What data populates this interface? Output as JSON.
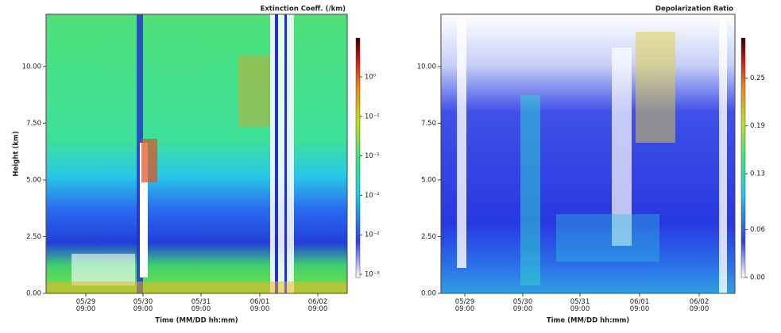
{
  "chart_data": [
    {
      "type": "heatmap",
      "title": "Extinction Coeff. (/km)",
      "xlabel": "Time (MM/DD hh:mm)",
      "ylabel": "Height (km)",
      "xtick_labels": [
        "05/29 09:00",
        "05/30 09:00",
        "05/31 09:00",
        "06/01 09:00",
        "06/02 09:00"
      ],
      "ylim": [
        0,
        12.3
      ],
      "yticks": [
        {
          "value": 0,
          "label": "0.00"
        },
        {
          "value": 2.5,
          "label": "2.50"
        },
        {
          "value": 5,
          "label": "5.00"
        },
        {
          "value": 7.5,
          "label": "7.50"
        },
        {
          "value": 10,
          "label": "10.00"
        }
      ],
      "colorbar_ticks": [
        "10⁻³",
        "10⁻²",
        "10⁻²",
        "10⁻¹",
        "10⁻¹",
        "10⁰"
      ]
    },
    {
      "type": "heatmap",
      "title": "Depolarization Ratio",
      "xlabel": "Time (MM/DD hh:mm)",
      "xtick_labels": [
        "05/29 09:00",
        "05/30 09:00",
        "05/31 09:00",
        "06/01 09:00",
        "06/02 09:00"
      ],
      "ylim": [
        0,
        12.3
      ],
      "yticks": [
        {
          "value": 0,
          "label": "0.00"
        },
        {
          "value": 2.5,
          "label": "2.50"
        },
        {
          "value": 5,
          "label": "5.00"
        },
        {
          "value": 7.5,
          "label": "7.50"
        },
        {
          "value": 10,
          "label": "10.00"
        }
      ],
      "clim": [
        0,
        0.3
      ],
      "colorbar_ticks": [
        {
          "value": 0,
          "label": "0.00"
        },
        {
          "value": 0.06,
          "label": "0.06"
        },
        {
          "value": 0.13,
          "label": "0.13"
        },
        {
          "value": 0.19,
          "label": "0.19"
        },
        {
          "value": 0.25,
          "label": "0.25"
        }
      ]
    }
  ]
}
